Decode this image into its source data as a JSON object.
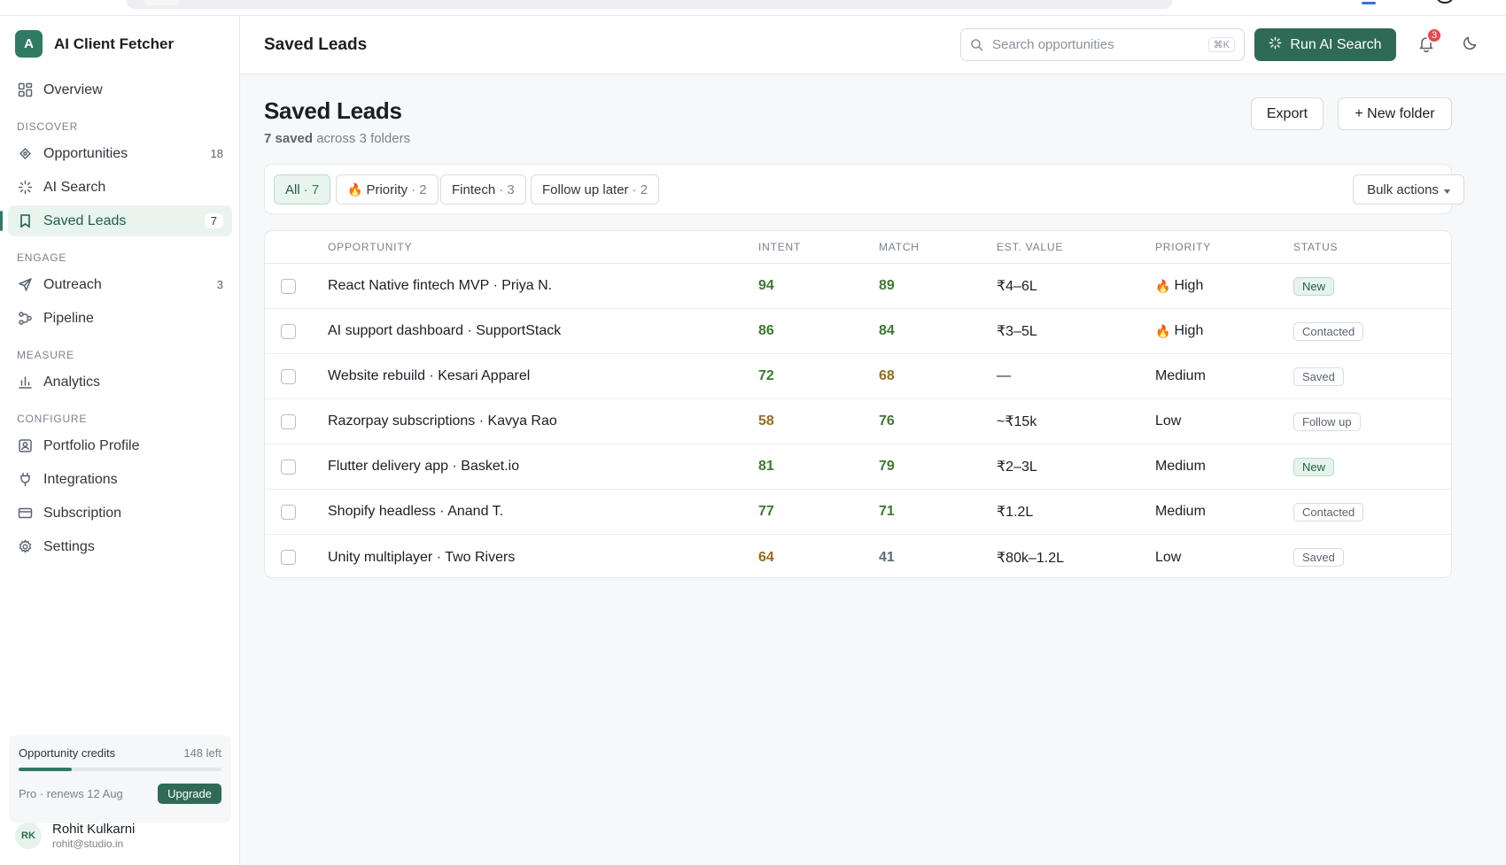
{
  "app": {
    "name": "AI Client Fetcher",
    "logo_letter": "A"
  },
  "sidebar": {
    "overview": "Overview",
    "sections": {
      "discover": "DISCOVER",
      "engage": "ENGAGE",
      "measure": "MEASURE",
      "configure": "CONFIGURE"
    },
    "items": {
      "opportunities": {
        "label": "Opportunities",
        "count": "18"
      },
      "ai_search": {
        "label": "AI Search"
      },
      "saved_leads": {
        "label": "Saved Leads",
        "count": "7"
      },
      "outreach": {
        "label": "Outreach",
        "count": "3"
      },
      "pipeline": {
        "label": "Pipeline"
      },
      "analytics": {
        "label": "Analytics"
      },
      "portfolio_profile": {
        "label": "Portfolio Profile"
      },
      "integrations": {
        "label": "Integrations"
      },
      "subscription": {
        "label": "Subscription"
      },
      "settings": {
        "label": "Settings"
      }
    },
    "credits": {
      "label": "Opportunity credits",
      "left": "148 left",
      "fill_fraction": 0.26,
      "plan": "Pro · renews 12 Aug",
      "upgrade": "Upgrade"
    },
    "user": {
      "initials": "RK",
      "name": "Rohit Kulkarni",
      "email": "rohit@studio.in"
    }
  },
  "header": {
    "title": "Saved Leads",
    "search_placeholder": "Search opportunities",
    "search_shortcut": "⌘K",
    "run_button": "Run AI Search",
    "notification_count": "3"
  },
  "page": {
    "title": "Saved Leads",
    "subtitle_strong": "7 saved",
    "subtitle_rest": " across 3 folders",
    "export": "Export",
    "new_folder": "+ New folder"
  },
  "filters": {
    "all": {
      "label": "All",
      "count": "· 7"
    },
    "priority": {
      "label": "Priority",
      "count": "· 2"
    },
    "fintech": {
      "label": "Fintech",
      "count": "· 3"
    },
    "follow_up": {
      "label": "Follow up later",
      "count": "· 2"
    },
    "bulk": "Bulk actions"
  },
  "table": {
    "headers": {
      "opportunity": "OPPORTUNITY",
      "intent": "INTENT",
      "match": "MATCH",
      "value": "EST. VALUE",
      "priority": "PRIORITY",
      "status": "STATUS"
    },
    "rows": [
      {
        "opportunity": "React Native fintech MVP · Priya N.",
        "intent": "94",
        "match": "89",
        "value": "₹4–6L",
        "priority": "High",
        "status": "New"
      },
      {
        "opportunity": "AI support dashboard · SupportStack",
        "intent": "86",
        "match": "84",
        "value": "₹3–5L",
        "priority": "High",
        "status": "Contacted"
      },
      {
        "opportunity": "Website rebuild · Kesari Apparel",
        "intent": "72",
        "match": "68",
        "value": "—",
        "priority": "Medium",
        "status": "Saved"
      },
      {
        "opportunity": "Razorpay subscriptions · Kavya Rao",
        "intent": "58",
        "match": "76",
        "value": "~₹15k",
        "priority": "Low",
        "status": "Follow up"
      },
      {
        "opportunity": "Flutter delivery app · Basket.io",
        "intent": "81",
        "match": "79",
        "value": "₹2–3L",
        "priority": "Medium",
        "status": "New"
      },
      {
        "opportunity": "Shopify headless · Anand T.",
        "intent": "77",
        "match": "71",
        "value": "₹1.2L",
        "priority": "Medium",
        "status": "Contacted"
      },
      {
        "opportunity": "Unity multiplayer · Two Rivers",
        "intent": "64",
        "match": "41",
        "value": "₹80k–1.2L",
        "priority": "Low",
        "status": "Saved"
      }
    ]
  },
  "colors": {
    "brand": "#2f6a56",
    "accent_light": "#e9f4ef",
    "score_green": "#3c7a2f",
    "score_amber": "#9a6b1d",
    "score_slate": "#5d6b7a",
    "badge_red": "#e5484d"
  }
}
